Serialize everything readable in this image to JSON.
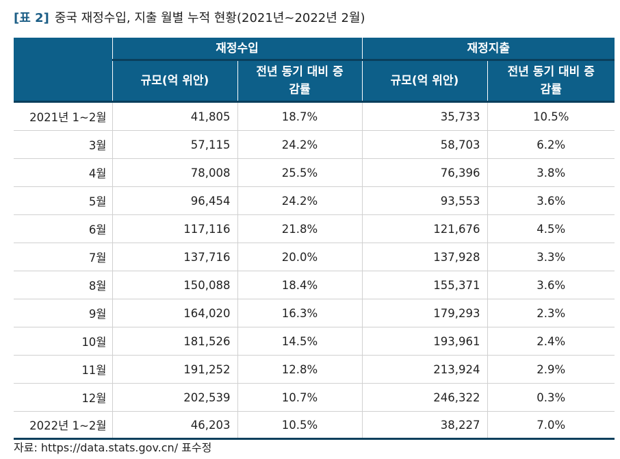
{
  "title": {
    "tag": "[표 2]",
    "text": "중국 재정수입, 지출 월별 누적 현황(2021년~2022년 2월)"
  },
  "table": {
    "group_headers": [
      "재정수입",
      "재정지출"
    ],
    "sub_headers": [
      "규모(억 위안)",
      "전년 동기 대비 증감률",
      "규모(억 위안)",
      "전년 동기 대비 증감률"
    ],
    "rows": [
      {
        "period": "2021년 1~2월",
        "rev": "41,805",
        "rev_pct": "18.7%",
        "exp": "35,733",
        "exp_pct": "10.5%"
      },
      {
        "period": "3월",
        "rev": "57,115",
        "rev_pct": "24.2%",
        "exp": "58,703",
        "exp_pct": "6.2%"
      },
      {
        "period": "4월",
        "rev": "78,008",
        "rev_pct": "25.5%",
        "exp": "76,396",
        "exp_pct": "3.8%"
      },
      {
        "period": "5월",
        "rev": "96,454",
        "rev_pct": "24.2%",
        "exp": "93,553",
        "exp_pct": "3.6%"
      },
      {
        "period": "6월",
        "rev": "117,116",
        "rev_pct": "21.8%",
        "exp": "121,676",
        "exp_pct": "4.5%"
      },
      {
        "period": "7월",
        "rev": "137,716",
        "rev_pct": "20.0%",
        "exp": "137,928",
        "exp_pct": "3.3%"
      },
      {
        "period": "8월",
        "rev": "150,088",
        "rev_pct": "18.4%",
        "exp": "155,371",
        "exp_pct": "3.6%"
      },
      {
        "period": "9월",
        "rev": "164,020",
        "rev_pct": "16.3%",
        "exp": "179,293",
        "exp_pct": "2.3%"
      },
      {
        "period": "10월",
        "rev": "181,526",
        "rev_pct": "14.5%",
        "exp": "193,961",
        "exp_pct": "2.4%"
      },
      {
        "period": "11월",
        "rev": "191,252",
        "rev_pct": "12.8%",
        "exp": "213,924",
        "exp_pct": "2.9%"
      },
      {
        "period": "12월",
        "rev": "202,539",
        "rev_pct": "10.7%",
        "exp": "246,322",
        "exp_pct": "0.3%"
      },
      {
        "period": "2022년 1~2월",
        "rev": "46,203",
        "rev_pct": "10.5%",
        "exp": "38,227",
        "exp_pct": "7.0%"
      }
    ]
  },
  "source": "자료: https://data.stats.gov.cn/ 표수정",
  "colors": {
    "header_bg": "#0d5f89",
    "title_tag": "#1c5e86",
    "rule": "#0a3f5c"
  }
}
